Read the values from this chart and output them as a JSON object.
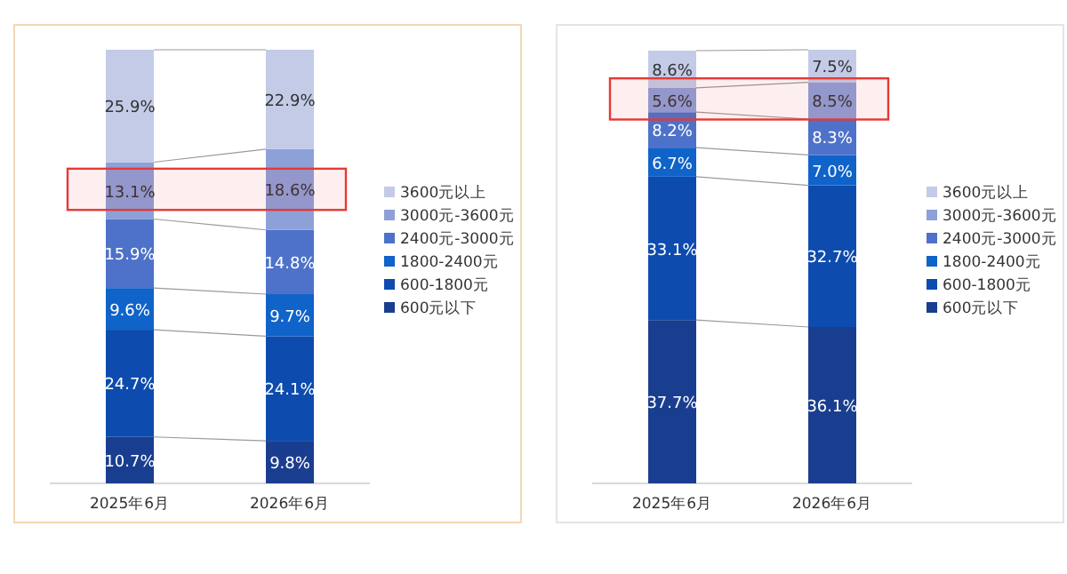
{
  "chart_data": [
    {
      "type": "bar",
      "stacked": true,
      "legend": "right",
      "categories": [
        "2025年6月",
        "2026年6月"
      ],
      "series": [
        {
          "name": "600元以下",
          "color": "#1a3e8f",
          "values": [
            10.7,
            9.8
          ],
          "value_labels": [
            "10.7%",
            "9.8%"
          ]
        },
        {
          "name": "600-1800元",
          "color": "#0d4cae",
          "values": [
            24.7,
            24.1
          ],
          "value_labels": [
            "24.7%",
            "24.1%"
          ]
        },
        {
          "name": "1800-2400元",
          "color": "#0f63c9",
          "values": [
            9.6,
            9.7
          ],
          "value_labels": [
            "9.6%",
            "9.7%"
          ]
        },
        {
          "name": "2400元-3000元",
          "color": "#4e72c9",
          "values": [
            15.9,
            14.8
          ],
          "value_labels": [
            "15.9%",
            "14.8%"
          ]
        },
        {
          "name": "3000元-3600元",
          "color": "#8ea0d8",
          "values": [
            13.1,
            18.6
          ],
          "value_labels": [
            "13.1%",
            "18.6%"
          ]
        },
        {
          "name": "3600元以上",
          "color": "#c3cbe7",
          "values": [
            25.9,
            22.9
          ],
          "value_labels": [
            "25.9%",
            "22.9%"
          ]
        }
      ],
      "bands": [
        {
          "axis": "y",
          "from": 63,
          "to": 72.5,
          "color": "#e53935"
        }
      ]
    },
    {
      "type": "bar",
      "stacked": true,
      "legend": "right",
      "categories": [
        "2025年6月",
        "2026年6月"
      ],
      "series": [
        {
          "name": "600元以下",
          "color": "#1a3e8f",
          "values": [
            37.7,
            36.1
          ],
          "value_labels": [
            "37.7%",
            "36.1%"
          ]
        },
        {
          "name": "600-1800元",
          "color": "#0d4cae",
          "values": [
            33.1,
            32.7
          ],
          "value_labels": [
            "33.1%",
            "32.7%"
          ]
        },
        {
          "name": "1800-2400元",
          "color": "#0f63c9",
          "values": [
            6.7,
            7.0
          ],
          "value_labels": [
            "6.7%",
            "7.0%"
          ]
        },
        {
          "name": "2400元-3000元",
          "color": "#4e72c9",
          "values": [
            8.2,
            8.3
          ],
          "value_labels": [
            "8.2%",
            "8.3%"
          ]
        },
        {
          "name": "3000元-3600元",
          "color": "#8ea0d8",
          "values": [
            5.6,
            8.5
          ],
          "value_labels": [
            "5.6%",
            "8.5%"
          ]
        },
        {
          "name": "3600元以上",
          "color": "#c3cbe7",
          "values": [
            8.6,
            7.5
          ],
          "value_labels": [
            "8.6%",
            "7.5%"
          ]
        }
      ],
      "bands": [
        {
          "axis": "y",
          "from": 84,
          "to": 93.5,
          "color": "#e53935"
        }
      ]
    }
  ]
}
